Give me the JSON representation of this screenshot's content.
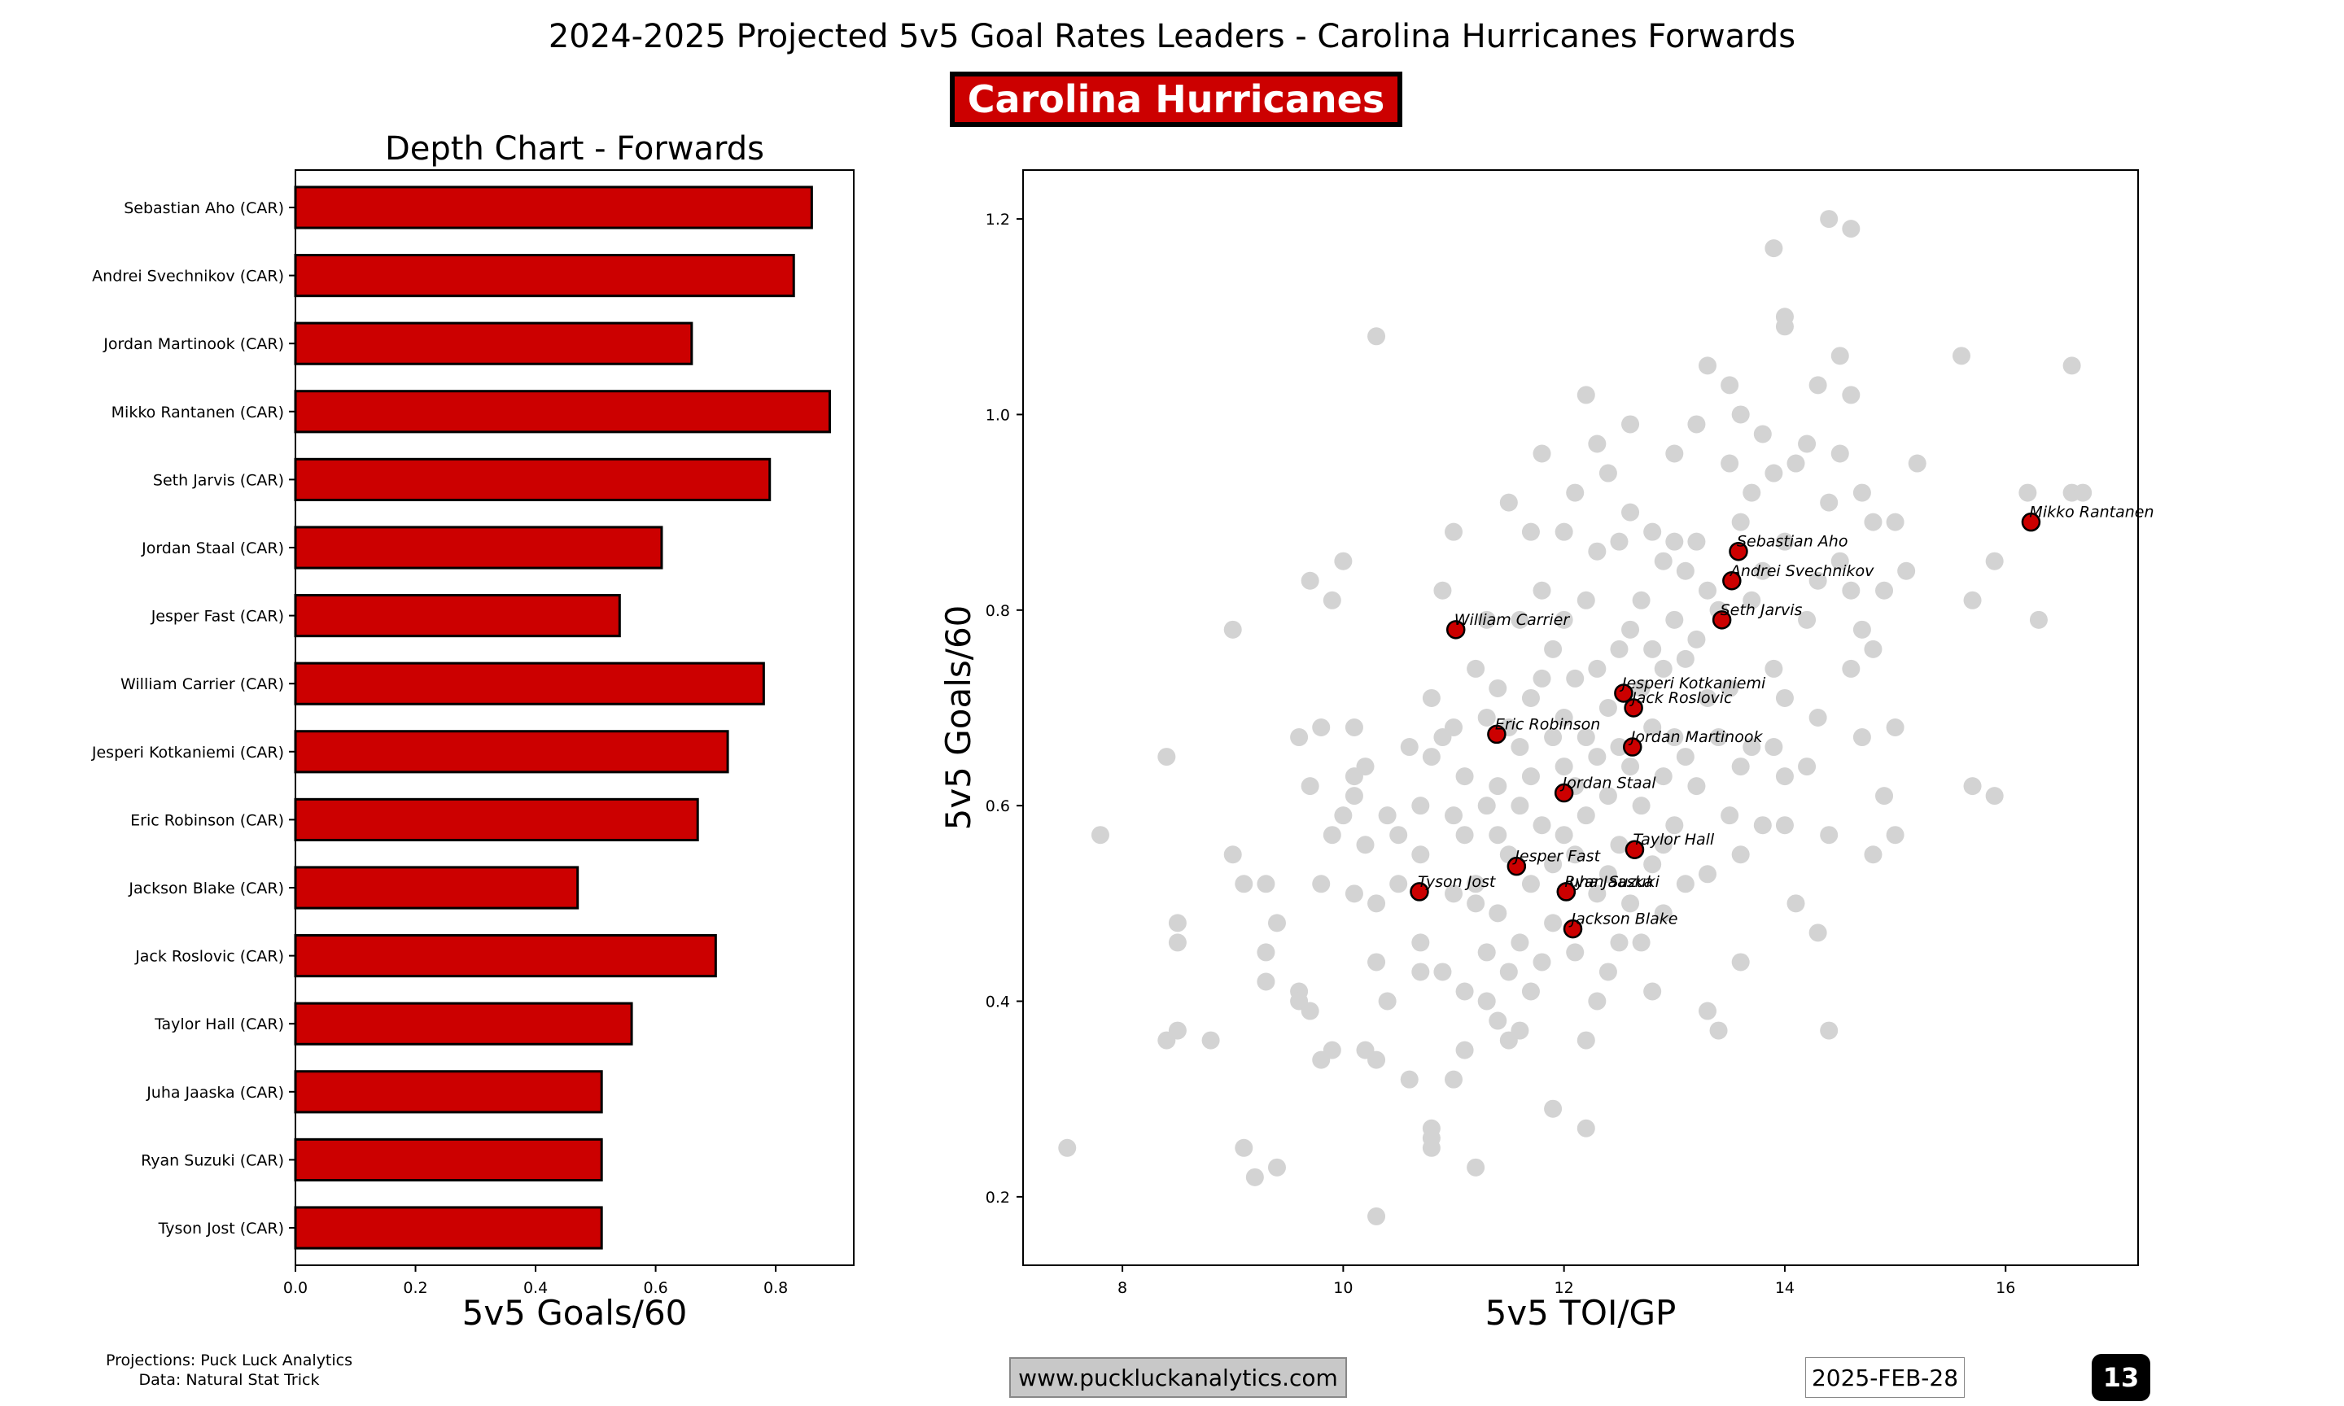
{
  "title": "2024-2025 Projected 5v5 Goal Rates Leaders - Carolina Hurricanes Forwards",
  "team_badge": "Carolina Hurricanes",
  "colors": {
    "bar": "#cc0000",
    "highlight": "#cc0000",
    "background_points": "#d3d3d3",
    "badge_bg": "#cc0000"
  },
  "footer": {
    "credits_line1": "Projections: Puck Luck Analytics",
    "credits_line2": "Data: Natural Stat Trick",
    "website": "www.puckluckanalytics.com",
    "date": "2025-FEB-28",
    "page": "13"
  },
  "chart_data": [
    {
      "type": "bar",
      "orientation": "horizontal",
      "title": "Depth Chart - Forwards",
      "xlabel": "5v5 Goals/60",
      "ylabel": "",
      "xlim": [
        0,
        0.93
      ],
      "xticks": [
        0.0,
        0.2,
        0.4,
        0.6,
        0.8
      ],
      "tick_labels": [
        "0.0",
        "0.2",
        "0.4",
        "0.6",
        "0.8"
      ],
      "categories": [
        "Sebastian Aho (CAR)",
        "Andrei Svechnikov (CAR)",
        "Jordan Martinook (CAR)",
        "Mikko Rantanen (CAR)",
        "Seth Jarvis (CAR)",
        "Jordan Staal (CAR)",
        "Jesper Fast (CAR)",
        "William Carrier (CAR)",
        "Jesperi Kotkaniemi (CAR)",
        "Eric Robinson (CAR)",
        "Jackson Blake (CAR)",
        "Jack Roslovic (CAR)",
        "Taylor Hall (CAR)",
        "Juha Jaaska (CAR)",
        "Ryan Suzuki (CAR)",
        "Tyson Jost (CAR)"
      ],
      "values": [
        0.86,
        0.83,
        0.66,
        0.89,
        0.79,
        0.61,
        0.54,
        0.78,
        0.72,
        0.67,
        0.47,
        0.7,
        0.56,
        0.51,
        0.51,
        0.51
      ]
    },
    {
      "type": "scatter",
      "xlabel": "5v5 TOI/GP",
      "ylabel": "5v5 Goals/60",
      "xlim": [
        7.1,
        17.2
      ],
      "ylim": [
        0.13,
        1.25
      ],
      "xticks": [
        8,
        10,
        12,
        14,
        16
      ],
      "x_tick_labels": [
        "8",
        "10",
        "12",
        "14",
        "16"
      ],
      "yticks": [
        0.2,
        0.4,
        0.6,
        0.8,
        1.0,
        1.2
      ],
      "y_tick_labels": [
        "0.2",
        "0.4",
        "0.6",
        "0.8",
        "1.0",
        "1.2"
      ],
      "highlighted": [
        {
          "name": "Mikko Rantanen",
          "x": 16.23,
          "y": 0.89
        },
        {
          "name": "Sebastian Aho",
          "x": 13.58,
          "y": 0.86
        },
        {
          "name": "Andrei Svechnikov",
          "x": 13.52,
          "y": 0.83
        },
        {
          "name": "Seth Jarvis",
          "x": 13.43,
          "y": 0.79
        },
        {
          "name": "William Carrier",
          "x": 11.02,
          "y": 0.78
        },
        {
          "name": "Jesperi Kotkaniemi",
          "x": 12.54,
          "y": 0.715
        },
        {
          "name": "Jack Roslovic",
          "x": 12.63,
          "y": 0.7
        },
        {
          "name": "Eric Robinson",
          "x": 11.39,
          "y": 0.673
        },
        {
          "name": "Jordan Martinook",
          "x": 12.62,
          "y": 0.66
        },
        {
          "name": "Jordan Staal",
          "x": 12.0,
          "y": 0.613
        },
        {
          "name": "Taylor Hall",
          "x": 12.64,
          "y": 0.555
        },
        {
          "name": "Jesper Fast",
          "x": 11.57,
          "y": 0.538
        },
        {
          "name": "Tyson Jost",
          "x": 10.69,
          "y": 0.512
        },
        {
          "name": "Juha Jaaska",
          "x": 12.02,
          "y": 0.512
        },
        {
          "name": "Ryan Suzuki",
          "x": 12.02,
          "y": 0.512
        },
        {
          "name": "Jackson Blake",
          "x": 12.08,
          "y": 0.474
        }
      ],
      "background_points": [
        [
          7.5,
          0.25
        ],
        [
          7.8,
          0.57
        ],
        [
          8.4,
          0.65
        ],
        [
          8.4,
          0.36
        ],
        [
          8.5,
          0.37
        ],
        [
          8.5,
          0.48
        ],
        [
          8.5,
          0.46
        ],
        [
          8.8,
          0.36
        ],
        [
          9.0,
          0.78
        ],
        [
          9.0,
          0.55
        ],
        [
          9.1,
          0.52
        ],
        [
          9.1,
          0.25
        ],
        [
          9.2,
          0.22
        ],
        [
          9.3,
          0.52
        ],
        [
          9.3,
          0.45
        ],
        [
          9.3,
          0.42
        ],
        [
          9.4,
          0.48
        ],
        [
          9.4,
          0.23
        ],
        [
          9.6,
          0.67
        ],
        [
          9.6,
          0.41
        ],
        [
          9.6,
          0.4
        ],
        [
          9.7,
          0.83
        ],
        [
          9.7,
          0.62
        ],
        [
          9.7,
          0.39
        ],
        [
          9.8,
          0.68
        ],
        [
          9.8,
          0.52
        ],
        [
          9.8,
          0.34
        ],
        [
          9.9,
          0.57
        ],
        [
          9.9,
          0.35
        ],
        [
          9.9,
          0.81
        ],
        [
          10.0,
          0.85
        ],
        [
          10.0,
          0.59
        ],
        [
          10.1,
          0.68
        ],
        [
          10.1,
          0.63
        ],
        [
          10.1,
          0.51
        ],
        [
          10.1,
          0.61
        ],
        [
          10.2,
          0.64
        ],
        [
          10.2,
          0.56
        ],
        [
          10.2,
          0.35
        ],
        [
          10.3,
          0.5
        ],
        [
          10.3,
          0.44
        ],
        [
          10.3,
          0.34
        ],
        [
          10.3,
          1.08
        ],
        [
          10.3,
          0.18
        ],
        [
          10.4,
          0.59
        ],
        [
          10.4,
          0.4
        ],
        [
          10.5,
          0.52
        ],
        [
          10.5,
          0.57
        ],
        [
          10.6,
          0.32
        ],
        [
          10.6,
          0.66
        ],
        [
          10.7,
          0.6
        ],
        [
          10.7,
          0.55
        ],
        [
          10.7,
          0.46
        ],
        [
          10.7,
          0.43
        ],
        [
          10.8,
          0.71
        ],
        [
          10.8,
          0.65
        ],
        [
          10.8,
          0.27
        ],
        [
          10.8,
          0.26
        ],
        [
          10.8,
          0.25
        ],
        [
          10.9,
          0.82
        ],
        [
          10.9,
          0.67
        ],
        [
          10.9,
          0.43
        ],
        [
          11.0,
          0.68
        ],
        [
          11.0,
          0.59
        ],
        [
          11.0,
          0.51
        ],
        [
          11.0,
          0.32
        ],
        [
          11.0,
          0.88
        ],
        [
          11.1,
          0.63
        ],
        [
          11.1,
          0.57
        ],
        [
          11.1,
          0.41
        ],
        [
          11.1,
          0.35
        ],
        [
          11.2,
          0.74
        ],
        [
          11.2,
          0.5
        ],
        [
          11.2,
          0.23
        ],
        [
          11.3,
          0.79
        ],
        [
          11.3,
          0.69
        ],
        [
          11.3,
          0.6
        ],
        [
          11.3,
          0.45
        ],
        [
          11.3,
          0.4
        ],
        [
          11.4,
          0.72
        ],
        [
          11.4,
          0.62
        ],
        [
          11.4,
          0.57
        ],
        [
          11.4,
          0.49
        ],
        [
          11.4,
          0.38
        ],
        [
          11.5,
          0.91
        ],
        [
          11.5,
          0.68
        ],
        [
          11.5,
          0.55
        ],
        [
          11.5,
          0.43
        ],
        [
          11.5,
          0.36
        ],
        [
          11.6,
          0.79
        ],
        [
          11.6,
          0.66
        ],
        [
          11.6,
          0.6
        ],
        [
          11.6,
          0.46
        ],
        [
          11.6,
          0.37
        ],
        [
          11.7,
          0.88
        ],
        [
          11.7,
          0.71
        ],
        [
          11.7,
          0.63
        ],
        [
          11.7,
          0.52
        ],
        [
          11.7,
          0.41
        ],
        [
          11.8,
          0.96
        ],
        [
          11.8,
          0.82
        ],
        [
          11.8,
          0.73
        ],
        [
          11.8,
          0.58
        ],
        [
          11.8,
          0.44
        ],
        [
          11.9,
          0.76
        ],
        [
          11.9,
          0.67
        ],
        [
          11.9,
          0.54
        ],
        [
          11.9,
          0.48
        ],
        [
          11.9,
          0.29
        ],
        [
          12.0,
          0.88
        ],
        [
          12.0,
          0.79
        ],
        [
          12.0,
          0.69
        ],
        [
          12.0,
          0.64
        ],
        [
          12.0,
          0.57
        ],
        [
          12.1,
          0.92
        ],
        [
          12.1,
          0.73
        ],
        [
          12.1,
          0.62
        ],
        [
          12.1,
          0.55
        ],
        [
          12.1,
          0.45
        ],
        [
          12.2,
          1.02
        ],
        [
          12.2,
          0.81
        ],
        [
          12.2,
          0.67
        ],
        [
          12.2,
          0.59
        ],
        [
          12.2,
          0.27
        ],
        [
          12.3,
          0.97
        ],
        [
          12.3,
          0.86
        ],
        [
          12.3,
          0.74
        ],
        [
          12.3,
          0.65
        ],
        [
          12.3,
          0.51
        ],
        [
          12.3,
          0.4
        ],
        [
          12.4,
          0.94
        ],
        [
          12.4,
          0.7
        ],
        [
          12.4,
          0.61
        ],
        [
          12.4,
          0.53
        ],
        [
          12.4,
          0.43
        ],
        [
          12.5,
          0.87
        ],
        [
          12.5,
          0.76
        ],
        [
          12.5,
          0.66
        ],
        [
          12.5,
          0.56
        ],
        [
          12.5,
          0.46
        ],
        [
          12.6,
          0.9
        ],
        [
          12.6,
          0.78
        ],
        [
          12.6,
          0.64
        ],
        [
          12.6,
          0.5
        ],
        [
          12.6,
          0.99
        ],
        [
          12.7,
          0.81
        ],
        [
          12.7,
          0.72
        ],
        [
          12.7,
          0.6
        ],
        [
          12.7,
          0.46
        ],
        [
          12.8,
          0.88
        ],
        [
          12.8,
          0.76
        ],
        [
          12.8,
          0.68
        ],
        [
          12.8,
          0.54
        ],
        [
          12.8,
          0.41
        ],
        [
          12.9,
          0.85
        ],
        [
          12.9,
          0.74
        ],
        [
          12.9,
          0.63
        ],
        [
          12.9,
          0.56
        ],
        [
          12.9,
          0.49
        ],
        [
          13.0,
          0.96
        ],
        [
          13.0,
          0.87
        ],
        [
          13.0,
          0.79
        ],
        [
          13.0,
          0.67
        ],
        [
          13.0,
          0.58
        ],
        [
          13.1,
          0.84
        ],
        [
          13.1,
          0.75
        ],
        [
          13.1,
          0.65
        ],
        [
          13.1,
          0.52
        ],
        [
          13.2,
          0.99
        ],
        [
          13.2,
          0.87
        ],
        [
          13.2,
          0.77
        ],
        [
          13.2,
          0.62
        ],
        [
          13.3,
          1.05
        ],
        [
          13.3,
          0.82
        ],
        [
          13.3,
          0.71
        ],
        [
          13.3,
          0.53
        ],
        [
          13.3,
          0.39
        ],
        [
          13.4,
          0.8
        ],
        [
          13.4,
          0.67
        ],
        [
          13.4,
          0.37
        ],
        [
          13.5,
          1.03
        ],
        [
          13.5,
          0.95
        ],
        [
          13.5,
          0.72
        ],
        [
          13.5,
          0.59
        ],
        [
          13.6,
          1.0
        ],
        [
          13.6,
          0.89
        ],
        [
          13.6,
          0.64
        ],
        [
          13.6,
          0.55
        ],
        [
          13.6,
          0.44
        ],
        [
          13.7,
          0.92
        ],
        [
          13.7,
          0.81
        ],
        [
          13.7,
          0.66
        ],
        [
          13.8,
          0.98
        ],
        [
          13.8,
          0.84
        ],
        [
          13.8,
          0.58
        ],
        [
          13.9,
          1.17
        ],
        [
          13.9,
          0.94
        ],
        [
          13.9,
          0.74
        ],
        [
          13.9,
          0.66
        ],
        [
          14.0,
          1.09
        ],
        [
          14.0,
          0.87
        ],
        [
          14.0,
          0.71
        ],
        [
          14.0,
          0.63
        ],
        [
          14.0,
          0.58
        ],
        [
          14.0,
          1.1
        ],
        [
          14.1,
          0.95
        ],
        [
          14.1,
          0.5
        ],
        [
          14.2,
          0.97
        ],
        [
          14.2,
          0.79
        ],
        [
          14.2,
          0.64
        ],
        [
          14.3,
          1.03
        ],
        [
          14.3,
          0.83
        ],
        [
          14.3,
          0.69
        ],
        [
          14.3,
          0.47
        ],
        [
          14.4,
          1.2
        ],
        [
          14.4,
          0.91
        ],
        [
          14.4,
          0.57
        ],
        [
          14.4,
          0.37
        ],
        [
          14.5,
          1.06
        ],
        [
          14.5,
          0.96
        ],
        [
          14.5,
          0.85
        ],
        [
          14.6,
          1.19
        ],
        [
          14.6,
          1.02
        ],
        [
          14.6,
          0.82
        ],
        [
          14.6,
          0.74
        ],
        [
          14.7,
          0.92
        ],
        [
          14.7,
          0.78
        ],
        [
          14.7,
          0.67
        ],
        [
          14.8,
          0.89
        ],
        [
          14.8,
          0.76
        ],
        [
          14.8,
          0.55
        ],
        [
          14.9,
          0.82
        ],
        [
          14.9,
          0.61
        ],
        [
          15.0,
          0.89
        ],
        [
          15.0,
          0.68
        ],
        [
          15.0,
          0.57
        ],
        [
          15.1,
          0.84
        ],
        [
          15.2,
          0.95
        ],
        [
          15.6,
          1.06
        ],
        [
          15.7,
          0.62
        ],
        [
          15.7,
          0.81
        ],
        [
          15.9,
          0.85
        ],
        [
          15.9,
          0.61
        ],
        [
          16.2,
          0.92
        ],
        [
          16.3,
          0.79
        ],
        [
          16.6,
          1.05
        ],
        [
          16.6,
          0.92
        ],
        [
          16.7,
          0.92
        ],
        [
          12.2,
          0.36
        ],
        [
          11.2,
          0.52
        ]
      ]
    }
  ]
}
